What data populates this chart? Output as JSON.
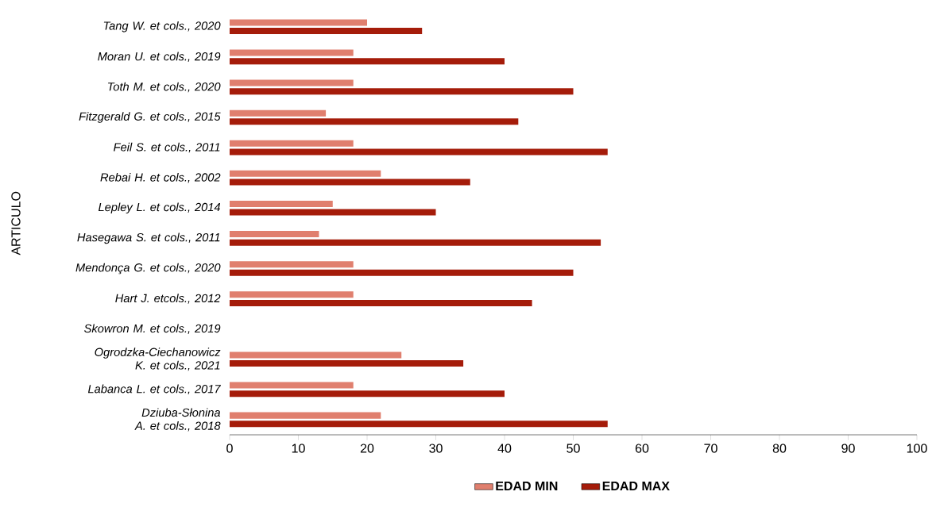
{
  "chart_data": {
    "type": "bar",
    "orientation": "horizontal",
    "ylabel": "ARTICULO",
    "categories": [
      "Tang W. et cols., 2020",
      "Moran U. et cols., 2019",
      "Toth M. et cols., 2020",
      "Fitzgerald G. et cols., 2015",
      "Feil S. et cols., 2011",
      "Rebai H. et cols., 2002",
      "Lepley L. et cols., 2014",
      "Hasegawa S. et cols., 2011",
      "Mendonça G. et cols., 2020",
      "Hart J. etcols., 2012",
      "Skowron M. et cols., 2019",
      "Ogrodzka-Ciechanowicz K. et cols., 2021",
      "Labanca L. et cols., 2017",
      "Dziuba-Słonina A. et cols., 2018"
    ],
    "series": [
      {
        "name": "EDAD MIN",
        "color": "#e07f6e",
        "values": [
          20,
          18,
          18,
          14,
          18,
          22,
          15,
          13,
          18,
          18,
          null,
          25,
          18,
          22
        ]
      },
      {
        "name": "EDAD MAX",
        "color": "#a51c0a",
        "values": [
          28,
          40,
          50,
          42,
          55,
          35,
          30,
          54,
          50,
          44,
          null,
          34,
          40,
          55
        ]
      }
    ],
    "xlim": [
      0,
      100
    ],
    "xticks": [
      0,
      10,
      20,
      30,
      40,
      50,
      60,
      70,
      80,
      90,
      100
    ],
    "legend": "bottom"
  }
}
